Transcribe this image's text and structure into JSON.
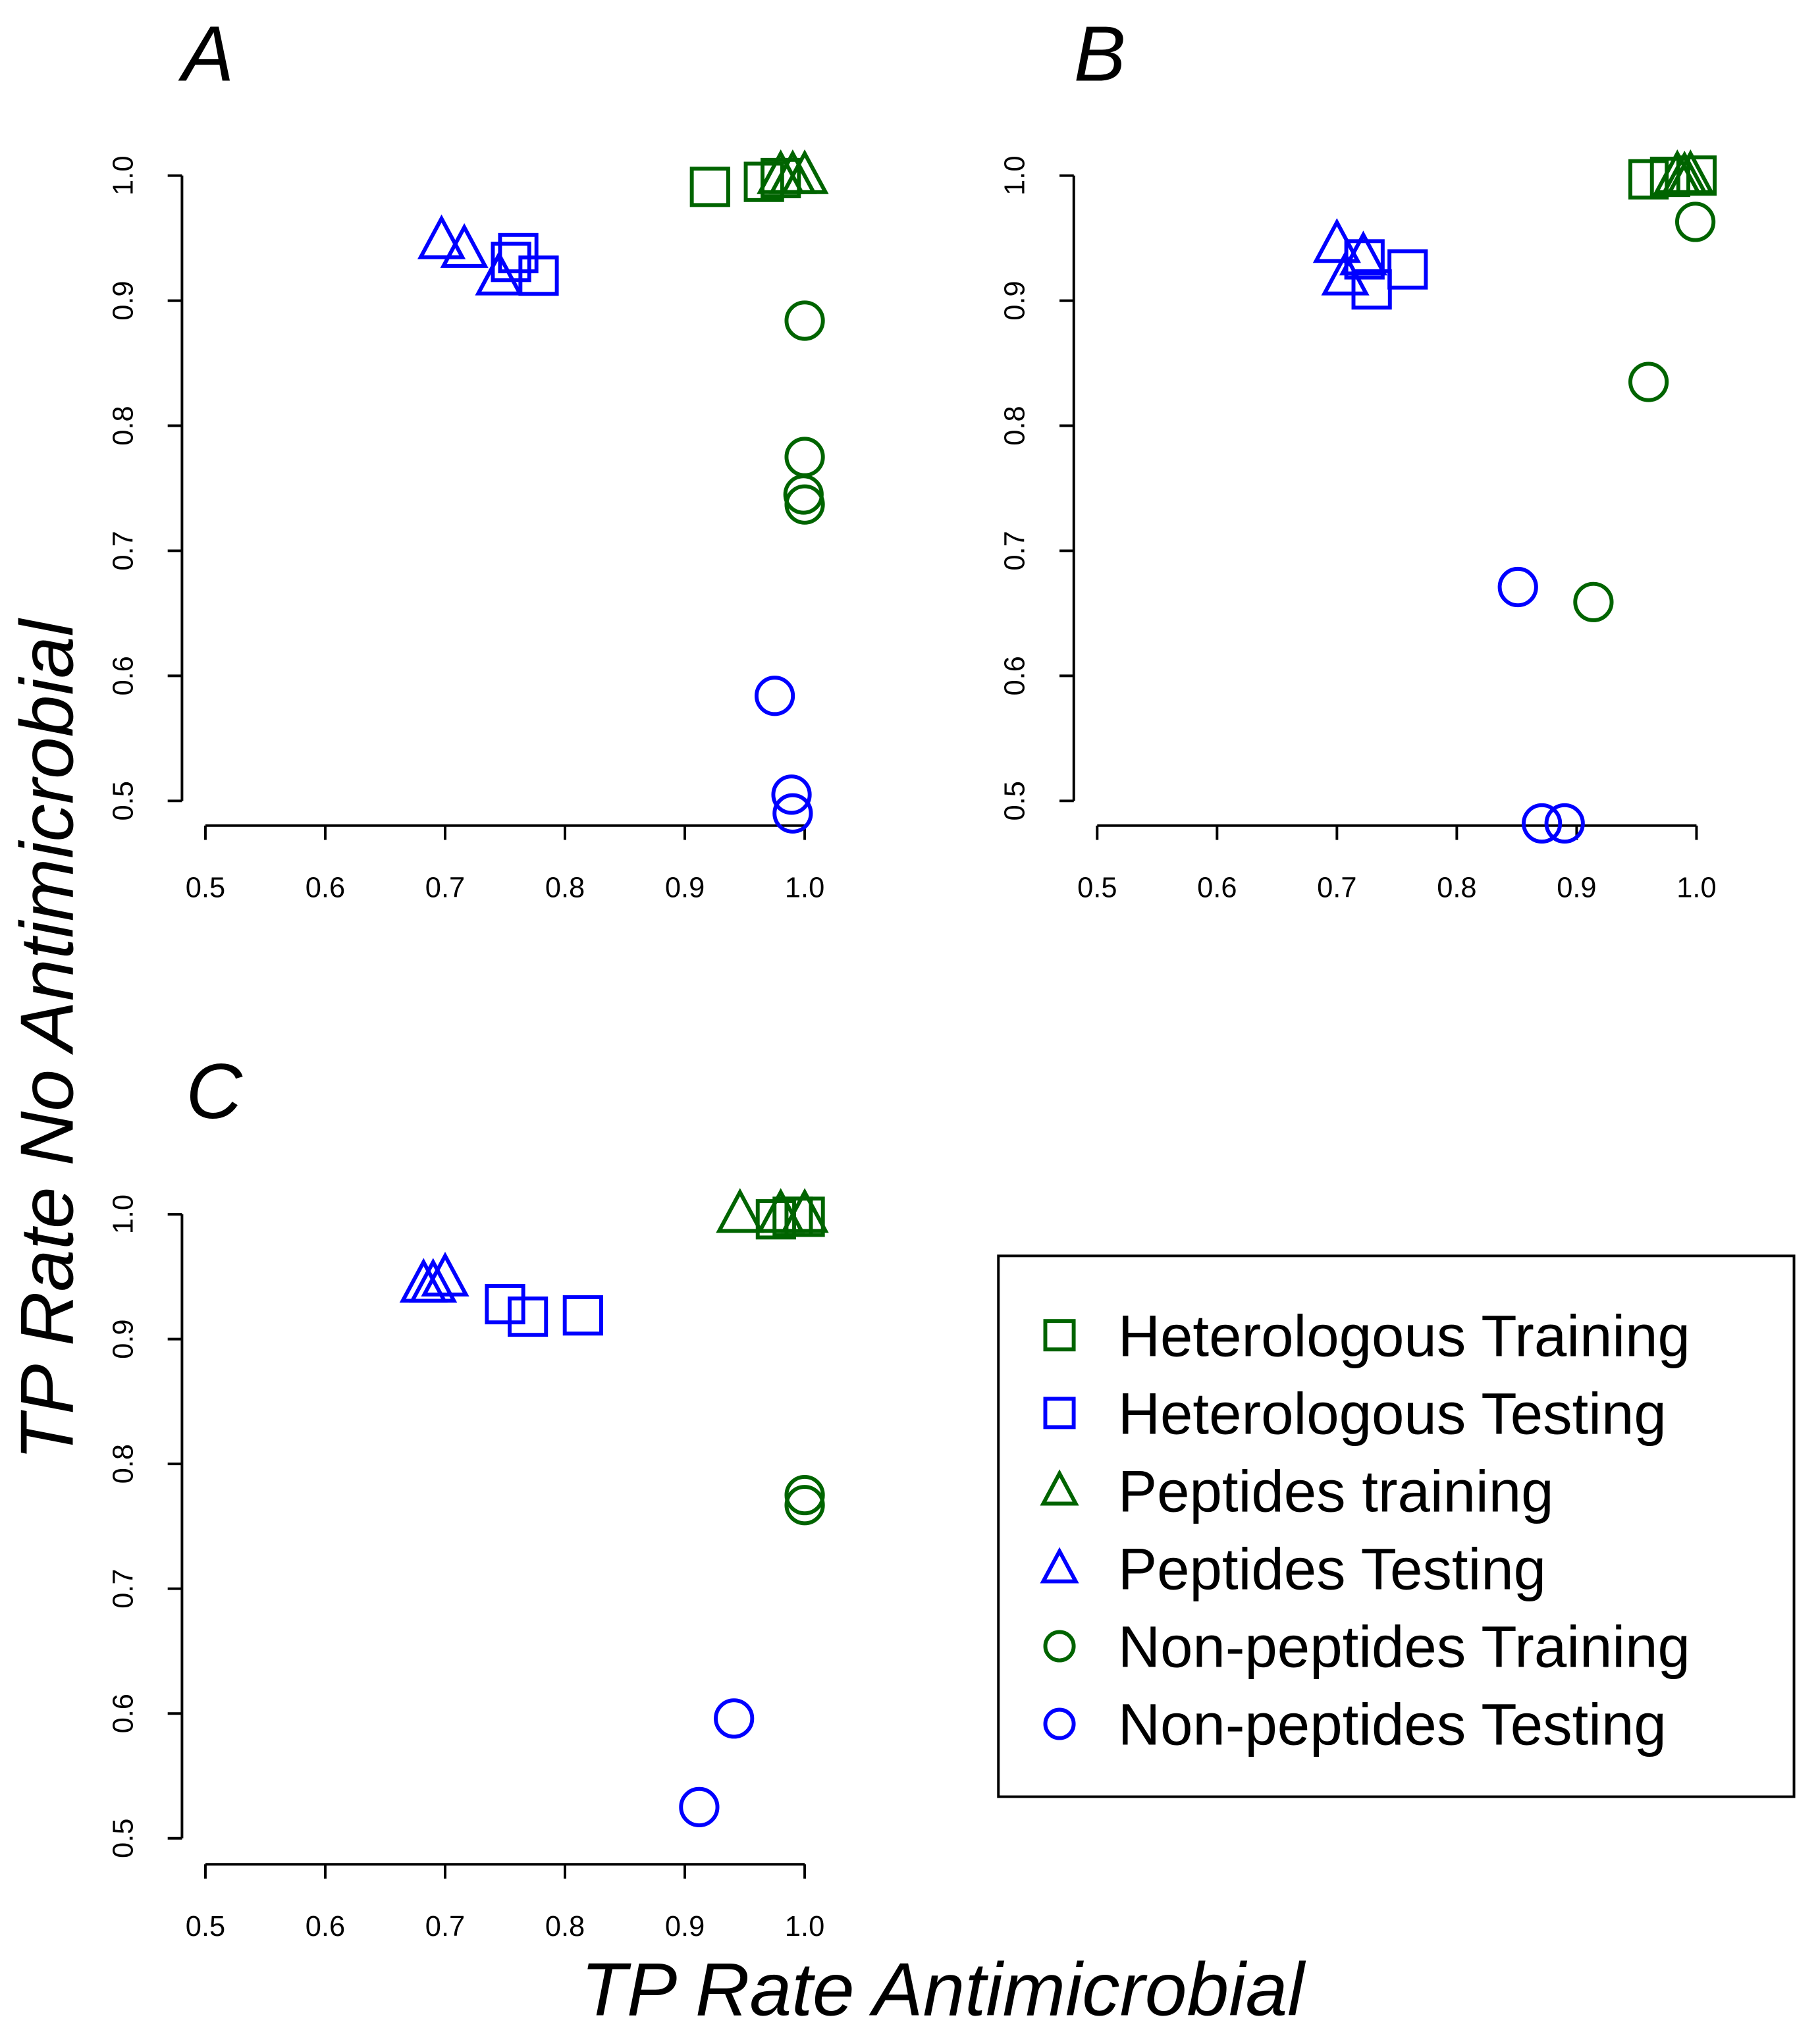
{
  "chart_data": {
    "type": "scatter",
    "xlabel": "TP Rate Antimicrobial",
    "ylabel": "TP Rate No Antimicrobial",
    "colors": {
      "training": "#006400",
      "testing": "#0000FF"
    },
    "legend": {
      "placement": "bottom-right",
      "entries": [
        {
          "label": "Heterologous Training",
          "marker": "square",
          "color": "#006400"
        },
        {
          "label": "Heterologous Testing",
          "marker": "square",
          "color": "#0000FF"
        },
        {
          "label": "Peptides training",
          "marker": "triangle",
          "color": "#006400"
        },
        {
          "label": "Peptides Testing",
          "marker": "triangle",
          "color": "#0000FF"
        },
        {
          "label": "Non-peptides Training",
          "marker": "circle",
          "color": "#006400"
        },
        {
          "label": "Non-peptides Testing",
          "marker": "circle",
          "color": "#0000FF"
        }
      ]
    },
    "panels": [
      {
        "label": "A",
        "xlim": [
          0.5,
          1.0
        ],
        "ylim": [
          0.5,
          1.0
        ],
        "xticks": [
          "0.5",
          "0.6",
          "0.7",
          "0.8",
          "0.9",
          "1.0"
        ],
        "yticks": [
          "0.5",
          "0.6",
          "0.7",
          "0.8",
          "0.9",
          "1.0"
        ],
        "series": [
          {
            "name": "Heterologous Training",
            "points": [
              [
                0.921,
                0.991
              ],
              [
                0.966,
                0.995
              ],
              [
                0.98,
                0.998
              ]
            ]
          },
          {
            "name": "Heterologous Testing",
            "points": [
              [
                0.761,
                0.938
              ],
              [
                0.755,
                0.931
              ],
              [
                0.778,
                0.92
              ]
            ]
          },
          {
            "name": "Peptides training",
            "points": [
              [
                0.98,
                1.0
              ],
              [
                0.99,
                1.0
              ],
              [
                1.0,
                1.0
              ]
            ]
          },
          {
            "name": "Peptides Testing",
            "points": [
              [
                0.697,
                0.948
              ],
              [
                0.716,
                0.941
              ],
              [
                0.745,
                0.919
              ]
            ]
          },
          {
            "name": "Non-peptides Training",
            "points": [
              [
                1.0,
                0.884
              ],
              [
                1.0,
                0.775
              ],
              [
                0.999,
                0.745
              ],
              [
                1.0,
                0.737
              ]
            ]
          },
          {
            "name": "Non-peptides Testing",
            "points": [
              [
                0.975,
                0.584
              ],
              [
                0.989,
                0.505
              ],
              [
                0.99,
                0.49
              ]
            ]
          }
        ]
      },
      {
        "label": "B",
        "xlim": [
          0.5,
          1.0
        ],
        "ylim": [
          0.5,
          1.0
        ],
        "xticks": [
          "0.5",
          "0.6",
          "0.7",
          "0.8",
          "0.9",
          "1.0"
        ],
        "yticks": [
          "0.5",
          "0.6",
          "0.7",
          "0.8",
          "0.9",
          "1.0"
        ],
        "series": [
          {
            "name": "Heterologous Training",
            "points": [
              [
                0.96,
                0.997
              ],
              [
                0.978,
                0.999
              ],
              [
                1.0,
                1.0
              ]
            ]
          },
          {
            "name": "Heterologous Testing",
            "points": [
              [
                0.723,
                0.933
              ],
              [
                0.729,
                0.909
              ],
              [
                0.759,
                0.925
              ]
            ]
          },
          {
            "name": "Peptides training",
            "points": [
              [
                0.984,
                1.0
              ],
              [
                0.99,
                0.999
              ],
              [
                0.995,
                1.0
              ]
            ]
          },
          {
            "name": "Peptides Testing",
            "points": [
              [
                0.7,
                0.945
              ],
              [
                0.722,
                0.935
              ],
              [
                0.707,
                0.919
              ]
            ]
          },
          {
            "name": "Non-peptides Training",
            "points": [
              [
                0.999,
                0.963
              ],
              [
                0.96,
                0.835
              ],
              [
                0.914,
                0.659
              ]
            ]
          },
          {
            "name": "Non-peptides Testing",
            "points": [
              [
                0.851,
                0.671
              ],
              [
                0.871,
                0.482
              ],
              [
                0.89,
                0.482
              ]
            ]
          }
        ]
      },
      {
        "label": "C",
        "xlim": [
          0.5,
          1.0
        ],
        "ylim": [
          0.5,
          1.0
        ],
        "xticks": [
          "0.5",
          "0.6",
          "0.7",
          "0.8",
          "0.9",
          "1.0"
        ],
        "yticks": [
          "0.5",
          "0.6",
          "0.7",
          "0.8",
          "0.9",
          "1.0"
        ],
        "series": [
          {
            "name": "Heterologous Training",
            "points": [
              [
                0.976,
                0.996
              ],
              [
                0.99,
                0.998
              ],
              [
                1.0,
                0.998
              ]
            ]
          },
          {
            "name": "Heterologous Testing",
            "points": [
              [
                0.75,
                0.928
              ],
              [
                0.769,
                0.918
              ],
              [
                0.815,
                0.919
              ]
            ]
          },
          {
            "name": "Peptides training",
            "points": [
              [
                0.946,
                1.0
              ],
              [
                0.98,
                1.0
              ],
              [
                1.0,
                1.0
              ]
            ]
          },
          {
            "name": "Peptides Testing",
            "points": [
              [
                0.682,
                0.944
              ],
              [
                0.69,
                0.944
              ],
              [
                0.7,
                0.949
              ]
            ]
          },
          {
            "name": "Non-peptides Training",
            "points": [
              [
                1.0,
                0.775
              ],
              [
                1.0,
                0.767
              ]
            ]
          },
          {
            "name": "Non-peptides Testing",
            "points": [
              [
                0.941,
                0.596
              ],
              [
                0.912,
                0.525
              ]
            ]
          }
        ]
      }
    ]
  }
}
